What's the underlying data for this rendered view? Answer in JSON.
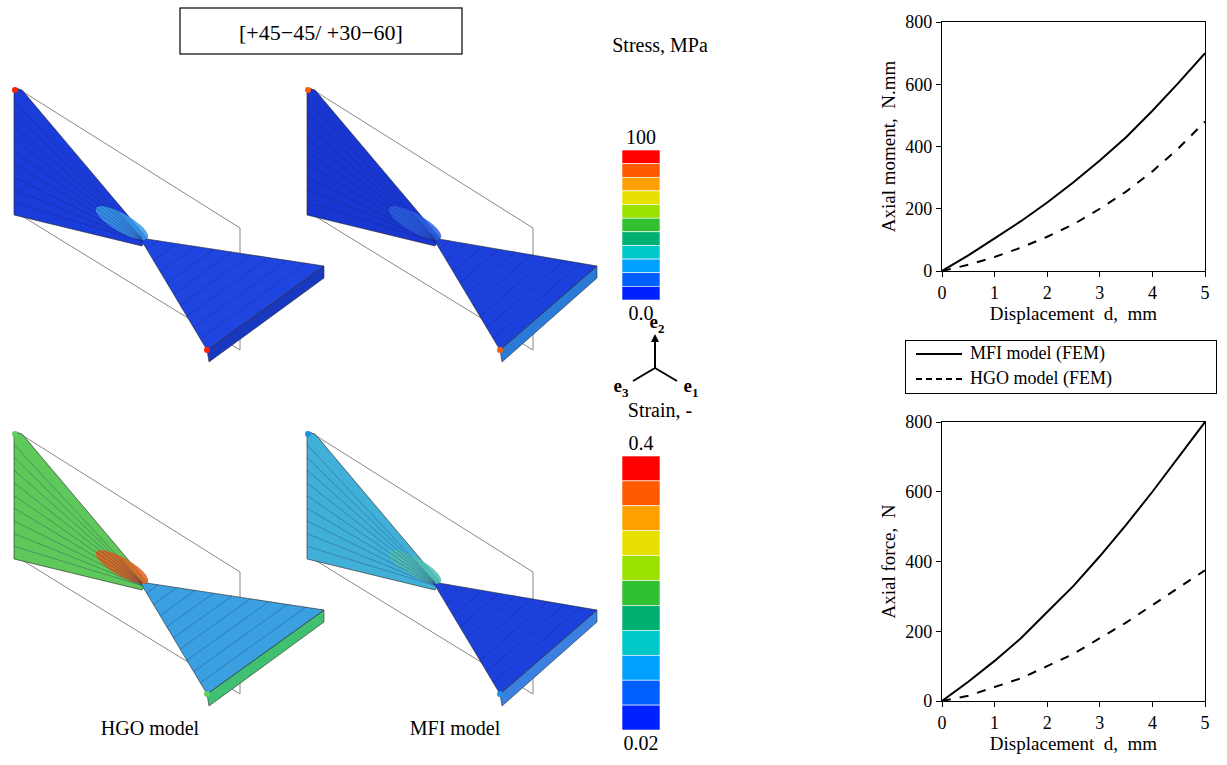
{
  "figure": {
    "title": "[+45−45/ +30−60]",
    "column_labels": [
      "HGO model",
      "MFI model"
    ],
    "colorbars": [
      {
        "title": "Stress,  MPa",
        "range": [
          0,
          100
        ],
        "ticks": [
          {
            "value": 0,
            "label": "0.0"
          },
          100
        ]
      },
      {
        "title": "Strain,  -",
        "range": [
          0.02,
          0.4
        ],
        "ticks": [
          0.02,
          0.4
        ]
      }
    ],
    "axes_triad": [
      "e2",
      "e3",
      "e1"
    ]
  },
  "chart_data": [
    {
      "type": "line",
      "x_label": "Displacement  d,  mm",
      "y_label": "Axial moment,  N.mm",
      "x": [
        0,
        0.5,
        1,
        1.5,
        2,
        2.5,
        3,
        3.5,
        4,
        4.5,
        5
      ],
      "series": [
        {
          "name": "MFI model (FEM)",
          "color": "#000000",
          "line_style": "solid",
          "values": [
            0,
            50,
            105,
            160,
            220,
            285,
            355,
            430,
            515,
            605,
            700
          ]
        },
        {
          "name": "HGO model (FEM)",
          "color": "#000000",
          "line_style": "dash",
          "values": [
            0,
            20,
            45,
            75,
            110,
            150,
            200,
            255,
            320,
            395,
            480
          ]
        }
      ],
      "xlim": [
        0,
        5
      ],
      "xticks": [
        0,
        1,
        2,
        3,
        4,
        5
      ],
      "ylim": [
        0,
        800
      ],
      "yticks": [
        0,
        200,
        400,
        600,
        800
      ],
      "grid": false,
      "legend": "bottom"
    },
    {
      "type": "line",
      "x_label": "Displacement  d,  mm",
      "y_label": "Axial force,  N",
      "x": [
        0,
        0.5,
        1,
        1.5,
        2,
        2.5,
        3,
        3.5,
        4,
        4.5,
        5
      ],
      "series": [
        {
          "name": "MFI model (FEM)",
          "color": "#000000",
          "line_style": "solid",
          "values": [
            0,
            55,
            115,
            180,
            255,
            330,
            415,
            505,
            600,
            700,
            800
          ]
        },
        {
          "name": "HGO model (FEM)",
          "color": "#000000",
          "line_style": "dash",
          "values": [
            0,
            15,
            40,
            65,
            100,
            135,
            180,
            225,
            275,
            325,
            375
          ]
        }
      ],
      "xlim": [
        0,
        5
      ],
      "xticks": [
        0,
        1,
        2,
        3,
        4,
        5
      ],
      "ylim": [
        0,
        800
      ],
      "yticks": [
        0,
        200,
        400,
        600,
        800
      ],
      "grid": false
    }
  ]
}
